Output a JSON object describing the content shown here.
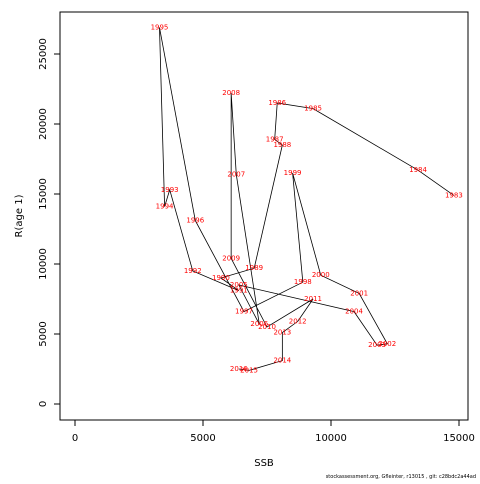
{
  "chart_data": {
    "type": "line",
    "x_label": "SSB",
    "y_label": "R(age 1)",
    "credit": "stockassessment.org, Gfleinter, r13015 , git: c28bdc2a44ad",
    "x": [
      14800,
      13400,
      9300,
      7900,
      7800,
      8100,
      7000,
      5700,
      6400,
      4600,
      3700,
      3500,
      3300,
      4700,
      6600,
      8900,
      8500,
      9600,
      11100,
      12200,
      11800,
      10900,
      6400,
      7200,
      6300,
      6100,
      6100,
      7500,
      9300,
      8700,
      8100,
      8100,
      6800,
      6400
    ],
    "series": [
      {
        "color": "#000000",
        "values": [
          14900,
          16700,
          21100,
          21500,
          18900,
          18500,
          9700,
          9000,
          8100,
          9500,
          15300,
          14100,
          26900,
          13100,
          6600,
          8700,
          16500,
          9200,
          7900,
          4300,
          4200,
          6600,
          8500,
          5700,
          16400,
          22200,
          10400,
          5500,
          7500,
          5900,
          5100,
          3100,
          2400,
          2500
        ]
      }
    ],
    "point_labels": [
      "1983",
      "1984",
      "1985",
      "1986",
      "1987",
      "1988",
      "1989",
      "1990",
      "1991",
      "1992",
      "1993",
      "1994",
      "1995",
      "1996",
      "1997",
      "1998",
      "1999",
      "2000",
      "2001",
      "2002",
      "2003",
      "2004",
      "2005",
      "2006",
      "2007",
      "2008",
      "2009",
      "2010",
      "2011",
      "2012",
      "2013",
      "2014",
      "2015",
      "2016"
    ],
    "label_color": "#ff0000",
    "xlim": [
      -586,
      15352
    ],
    "xticks": [
      0,
      5000,
      10000,
      15000
    ],
    "ylim": [
      -1143,
      28000
    ],
    "yticks": [
      0,
      5000,
      10000,
      15000,
      20000,
      25000
    ]
  }
}
